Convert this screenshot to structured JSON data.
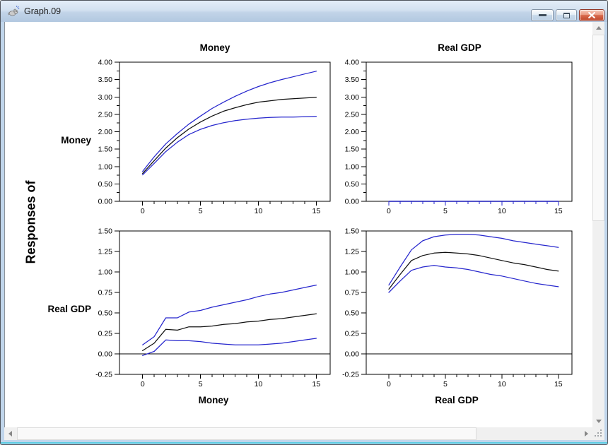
{
  "window": {
    "title": "Graph.09",
    "icons": {
      "app": "rat-icon",
      "minimize": "minimize-icon",
      "restore": "restore-icon",
      "close": "close-icon"
    }
  },
  "figure": {
    "responses_label": "Responses of",
    "row_labels": [
      "Money",
      "Real GDP"
    ],
    "col_titles": [
      "Money",
      "Real GDP"
    ],
    "colors": {
      "band": "#2626cd",
      "center": "#111111",
      "axis": "#000000"
    }
  },
  "chart_data": [
    {
      "id": "money-money",
      "type": "line",
      "title": "Money",
      "row": "Money",
      "x": [
        0,
        1,
        2,
        3,
        4,
        5,
        6,
        7,
        8,
        9,
        10,
        11,
        12,
        13,
        14,
        15
      ],
      "ylim": [
        0,
        4
      ],
      "ytick_step": 0.5,
      "yminor_step": 0.25,
      "xticks_labeled": [
        0,
        5,
        10,
        15
      ],
      "zero_line": false,
      "series": [
        {
          "name": "upper-band",
          "role": "band",
          "color": "#2626cd",
          "values": [
            0.86,
            1.28,
            1.65,
            1.95,
            2.22,
            2.45,
            2.67,
            2.85,
            3.02,
            3.17,
            3.3,
            3.41,
            3.5,
            3.58,
            3.66,
            3.74
          ]
        },
        {
          "name": "center",
          "role": "center",
          "color": "#111111",
          "values": [
            0.8,
            1.17,
            1.53,
            1.83,
            2.08,
            2.28,
            2.45,
            2.59,
            2.69,
            2.78,
            2.85,
            2.89,
            2.93,
            2.95,
            2.97,
            2.99
          ]
        },
        {
          "name": "lower-band",
          "role": "band",
          "color": "#2626cd",
          "values": [
            0.76,
            1.09,
            1.43,
            1.7,
            1.92,
            2.07,
            2.18,
            2.26,
            2.32,
            2.36,
            2.39,
            2.41,
            2.42,
            2.42,
            2.43,
            2.44
          ]
        }
      ]
    },
    {
      "id": "money-realgdp",
      "type": "line",
      "title": "Real GDP",
      "row": "Money",
      "x": [
        0,
        1,
        2,
        3,
        4,
        5,
        6,
        7,
        8,
        9,
        10,
        11,
        12,
        13,
        14,
        15
      ],
      "ylim": [
        0,
        4
      ],
      "ytick_step": 0.5,
      "yminor_step": 0.25,
      "xticks_labeled": [
        0,
        5,
        10,
        15
      ],
      "x_tick_color": "#2626cd",
      "zero_line": false,
      "series": [
        {
          "name": "upper-band",
          "role": "band",
          "color": "#2626cd",
          "values": [
            0,
            0,
            0,
            0,
            0,
            0,
            0,
            0,
            0,
            0,
            0,
            0,
            0,
            0,
            0,
            0
          ]
        },
        {
          "name": "center",
          "role": "center",
          "color": "#111111",
          "values": [
            0,
            0,
            0,
            0,
            0,
            0,
            0,
            0,
            0,
            0,
            0,
            0,
            0,
            0,
            0,
            0
          ]
        },
        {
          "name": "lower-band",
          "role": "band",
          "color": "#2626cd",
          "values": [
            0,
            0,
            0,
            0,
            0,
            0,
            0,
            0,
            0,
            0,
            0,
            0,
            0,
            0,
            0,
            0
          ]
        }
      ]
    },
    {
      "id": "realgdp-money",
      "type": "line",
      "xlabel": "Money",
      "row": "Real GDP",
      "x": [
        0,
        1,
        2,
        3,
        4,
        5,
        6,
        7,
        8,
        9,
        10,
        11,
        12,
        13,
        14,
        15
      ],
      "ylim": [
        -0.25,
        1.5
      ],
      "ytick_step": 0.25,
      "yminor_step": null,
      "xticks_labeled": [
        0,
        5,
        10,
        15
      ],
      "zero_line": true,
      "series": [
        {
          "name": "upper-band",
          "role": "band",
          "color": "#2626cd",
          "values": [
            0.11,
            0.21,
            0.44,
            0.44,
            0.51,
            0.53,
            0.57,
            0.6,
            0.63,
            0.66,
            0.7,
            0.73,
            0.75,
            0.78,
            0.81,
            0.84
          ]
        },
        {
          "name": "center",
          "role": "center",
          "color": "#111111",
          "values": [
            0.04,
            0.13,
            0.3,
            0.29,
            0.33,
            0.33,
            0.34,
            0.36,
            0.37,
            0.39,
            0.4,
            0.42,
            0.43,
            0.45,
            0.47,
            0.49
          ]
        },
        {
          "name": "lower-band",
          "role": "band",
          "color": "#2626cd",
          "values": [
            -0.02,
            0.03,
            0.17,
            0.16,
            0.16,
            0.15,
            0.13,
            0.12,
            0.11,
            0.11,
            0.11,
            0.12,
            0.13,
            0.15,
            0.17,
            0.19
          ]
        }
      ]
    },
    {
      "id": "realgdp-realgdp",
      "type": "line",
      "xlabel": "Real GDP",
      "row": "Real GDP",
      "x": [
        0,
        1,
        2,
        3,
        4,
        5,
        6,
        7,
        8,
        9,
        10,
        11,
        12,
        13,
        14,
        15
      ],
      "ylim": [
        -0.25,
        1.5
      ],
      "ytick_step": 0.25,
      "yminor_step": null,
      "xticks_labeled": [
        0,
        5,
        10,
        15
      ],
      "zero_line": true,
      "series": [
        {
          "name": "upper-band",
          "role": "band",
          "color": "#2626cd",
          "values": [
            0.84,
            1.06,
            1.27,
            1.38,
            1.43,
            1.45,
            1.46,
            1.46,
            1.45,
            1.43,
            1.41,
            1.38,
            1.36,
            1.34,
            1.32,
            1.3
          ]
        },
        {
          "name": "center",
          "role": "center",
          "color": "#111111",
          "values": [
            0.79,
            0.97,
            1.14,
            1.2,
            1.23,
            1.24,
            1.23,
            1.22,
            1.2,
            1.17,
            1.14,
            1.11,
            1.09,
            1.06,
            1.03,
            1.01
          ]
        },
        {
          "name": "lower-band",
          "role": "band",
          "color": "#2626cd",
          "values": [
            0.75,
            0.89,
            1.02,
            1.06,
            1.08,
            1.06,
            1.05,
            1.03,
            1.0,
            0.97,
            0.95,
            0.92,
            0.89,
            0.86,
            0.84,
            0.82
          ]
        }
      ]
    }
  ]
}
